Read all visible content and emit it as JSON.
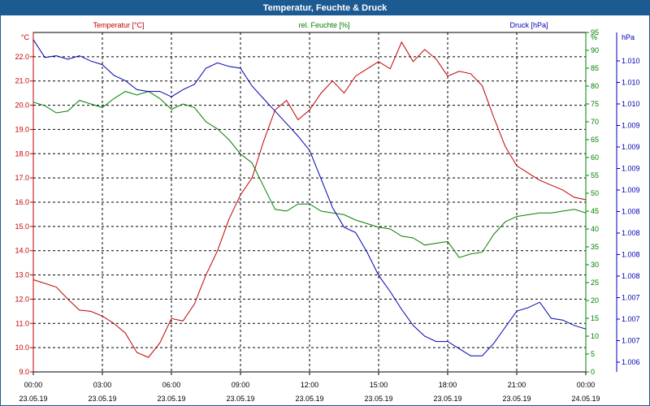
{
  "window": {
    "title": "Temperatur, Feuchte & Druck"
  },
  "chart_data": {
    "type": "line",
    "title": "Temperatur, Feuchte & Druck",
    "grid": true,
    "colors": {
      "temp": "#c00000",
      "humidity": "#008000",
      "pressure": "#0000b0",
      "frame": "#1c5a92"
    },
    "x": {
      "range": [
        "23.05.19 00:00",
        "24.05.19 00:00"
      ],
      "ticks": [
        {
          "time": "00:00",
          "date": "23.05.19"
        },
        {
          "time": "03:00",
          "date": "23.05.19"
        },
        {
          "time": "06:00",
          "date": "23.05.19"
        },
        {
          "time": "09:00",
          "date": "23.05.19"
        },
        {
          "time": "12:00",
          "date": "23.05.19"
        },
        {
          "time": "15:00",
          "date": "23.05.19"
        },
        {
          "time": "18:00",
          "date": "23.05.19"
        },
        {
          "time": "21:00",
          "date": "23.05.19"
        },
        {
          "time": "00:00",
          "date": "24.05.19"
        }
      ]
    },
    "axes": {
      "temp": {
        "unit": "°C",
        "legend": "Temperatur [°C]",
        "range": [
          9.0,
          23.0
        ],
        "ticks": [
          "9.0",
          "10.0",
          "11.0",
          "12.0",
          "13.0",
          "14.0",
          "15.0",
          "16.0",
          "17.0",
          "18.0",
          "19.0",
          "20.0",
          "21.0",
          "22.0"
        ]
      },
      "humidity": {
        "unit": "%",
        "legend": "rel. Feuchte [%]",
        "range": [
          0,
          95
        ],
        "ticks": [
          "0",
          "5",
          "10",
          "15",
          "20",
          "25",
          "30",
          "35",
          "40",
          "45",
          "50",
          "55",
          "60",
          "65",
          "70",
          "75",
          "80",
          "85",
          "90",
          "95"
        ]
      },
      "pressure": {
        "unit": "hPa",
        "legend": "Druck [hPa]",
        "ticks": [
          "1.006",
          "1.007",
          "1.007",
          "1.007",
          "1.008",
          "1.008",
          "1.008",
          "1.008",
          "1.009",
          "1.009",
          "1.009",
          "1.009",
          "1.010",
          "1.010",
          "1.010"
        ]
      }
    },
    "series": [
      {
        "name": "Temperatur [°C]",
        "axis": "temp",
        "points": [
          [
            "23.05.19 00:00",
            12.8
          ],
          [
            "23.05.19 00:30",
            12.65
          ],
          [
            "23.05.19 01:00",
            12.5
          ],
          [
            "23.05.19 01:30",
            12.0
          ],
          [
            "23.05.19 02:00",
            11.55
          ],
          [
            "23.05.19 02:30",
            11.5
          ],
          [
            "23.05.19 03:00",
            11.3
          ],
          [
            "23.05.19 03:30",
            11.0
          ],
          [
            "23.05.19 04:00",
            10.6
          ],
          [
            "23.05.19 04:30",
            9.8
          ],
          [
            "23.05.19 05:00",
            9.6
          ],
          [
            "23.05.19 05:30",
            10.2
          ],
          [
            "23.05.19 06:00",
            11.2
          ],
          [
            "23.05.19 06:30",
            11.1
          ],
          [
            "23.05.19 07:00",
            11.8
          ],
          [
            "23.05.19 07:30",
            13.0
          ],
          [
            "23.05.19 08:00",
            14.0
          ],
          [
            "23.05.19 08:30",
            15.3
          ],
          [
            "23.05.19 09:00",
            16.3
          ],
          [
            "23.05.19 09:30",
            17.0
          ],
          [
            "23.05.19 10:00",
            18.5
          ],
          [
            "23.05.19 10:30",
            19.8
          ],
          [
            "23.05.19 11:00",
            20.2
          ],
          [
            "23.05.19 11:30",
            19.4
          ],
          [
            "23.05.19 12:00",
            19.8
          ],
          [
            "23.05.19 12:30",
            20.5
          ],
          [
            "23.05.19 13:00",
            21.0
          ],
          [
            "23.05.19 13:30",
            20.5
          ],
          [
            "23.05.19 14:00",
            21.2
          ],
          [
            "23.05.19 14:30",
            21.5
          ],
          [
            "23.05.19 15:00",
            21.8
          ],
          [
            "23.05.19 15:30",
            21.5
          ],
          [
            "23.05.19 16:00",
            22.6
          ],
          [
            "23.05.19 16:30",
            21.8
          ],
          [
            "23.05.19 17:00",
            22.3
          ],
          [
            "23.05.19 17:30",
            21.9
          ],
          [
            "23.05.19 18:00",
            21.2
          ],
          [
            "23.05.19 18:30",
            21.4
          ],
          [
            "23.05.19 19:00",
            21.3
          ],
          [
            "23.05.19 19:30",
            20.8
          ],
          [
            "23.05.19 20:00",
            19.5
          ],
          [
            "23.05.19 20:30",
            18.3
          ],
          [
            "23.05.19 21:00",
            17.5
          ],
          [
            "23.05.19 21:30",
            17.2
          ],
          [
            "23.05.19 22:00",
            16.9
          ],
          [
            "23.05.19 22:30",
            16.7
          ],
          [
            "23.05.19 23:00",
            16.5
          ],
          [
            "23.05.19 23:30",
            16.2
          ],
          [
            "24.05.19 00:00",
            16.1
          ]
        ]
      },
      {
        "name": "rel. Feuchte [%]",
        "axis": "humidity",
        "points": [
          [
            "23.05.19 00:00",
            75.5
          ],
          [
            "23.05.19 00:30",
            74.5
          ],
          [
            "23.05.19 01:00",
            72.5
          ],
          [
            "23.05.19 01:30",
            73.0
          ],
          [
            "23.05.19 02:00",
            76.0
          ],
          [
            "23.05.19 02:30",
            75.0
          ],
          [
            "23.05.19 03:00",
            74.0
          ],
          [
            "23.05.19 03:30",
            76.5
          ],
          [
            "23.05.19 04:00",
            78.5
          ],
          [
            "23.05.19 04:30",
            77.5
          ],
          [
            "23.05.19 05:00",
            78.5
          ],
          [
            "23.05.19 05:30",
            76.5
          ],
          [
            "23.05.19 06:00",
            73.5
          ],
          [
            "23.05.19 06:30",
            75.0
          ],
          [
            "23.05.19 07:00",
            74.0
          ],
          [
            "23.05.19 07:30",
            70.0
          ],
          [
            "23.05.19 08:00",
            68.0
          ],
          [
            "23.05.19 08:30",
            65.0
          ],
          [
            "23.05.19 09:00",
            61.0
          ],
          [
            "23.05.19 09:30",
            58.5
          ],
          [
            "23.05.19 10:00",
            52.0
          ],
          [
            "23.05.19 10:30",
            45.5
          ],
          [
            "23.05.19 11:00",
            45.0
          ],
          [
            "23.05.19 11:30",
            47.0
          ],
          [
            "23.05.19 12:00",
            47.0
          ],
          [
            "23.05.19 12:30",
            45.0
          ],
          [
            "23.05.19 13:00",
            44.5
          ],
          [
            "23.05.19 13:30",
            44.0
          ],
          [
            "23.05.19 14:00",
            42.5
          ],
          [
            "23.05.19 14:30",
            41.5
          ],
          [
            "23.05.19 15:00",
            40.5
          ],
          [
            "23.05.19 15:30",
            40.0
          ],
          [
            "23.05.19 16:00",
            38.0
          ],
          [
            "23.05.19 16:30",
            37.5
          ],
          [
            "23.05.19 17:00",
            35.5
          ],
          [
            "23.05.19 17:30",
            36.0
          ],
          [
            "23.05.19 18:00",
            36.5
          ],
          [
            "23.05.19 18:30",
            32.0
          ],
          [
            "23.05.19 19:00",
            33.0
          ],
          [
            "23.05.19 19:30",
            33.5
          ],
          [
            "23.05.19 20:00",
            38.5
          ],
          [
            "23.05.19 20:30",
            42.0
          ],
          [
            "23.05.19 21:00",
            43.5
          ],
          [
            "23.05.19 21:30",
            44.0
          ],
          [
            "23.05.19 22:00",
            44.5
          ],
          [
            "23.05.19 22:30",
            44.5
          ],
          [
            "23.05.19 23:00",
            45.0
          ],
          [
            "23.05.19 23:30",
            45.5
          ],
          [
            "24.05.19 00:00",
            44.5
          ]
        ]
      },
      {
        "name": "Druck [hPa]",
        "axis": "pressure",
        "points": [
          [
            "23.05.19 00:00",
            93.0
          ],
          [
            "23.05.19 00:30",
            88.0
          ],
          [
            "23.05.19 01:00",
            88.5
          ],
          [
            "23.05.19 01:30",
            87.5
          ],
          [
            "23.05.19 02:00",
            88.5
          ],
          [
            "23.05.19 02:30",
            87.0
          ],
          [
            "23.05.19 03:00",
            86.0
          ],
          [
            "23.05.19 03:30",
            83.0
          ],
          [
            "23.05.19 04:00",
            81.5
          ],
          [
            "23.05.19 04:30",
            79.0
          ],
          [
            "23.05.19 05:00",
            78.5
          ],
          [
            "23.05.19 05:30",
            78.5
          ],
          [
            "23.05.19 06:00",
            77.0
          ],
          [
            "23.05.19 06:30",
            79.0
          ],
          [
            "23.05.19 07:00",
            80.5
          ],
          [
            "23.05.19 07:30",
            85.0
          ],
          [
            "23.05.19 08:00",
            86.5
          ],
          [
            "23.05.19 08:30",
            85.5
          ],
          [
            "23.05.19 09:00",
            85.0
          ],
          [
            "23.05.19 09:30",
            80.0
          ],
          [
            "23.05.19 10:00",
            76.5
          ],
          [
            "23.05.19 10:30",
            73.0
          ],
          [
            "23.05.19 11:00",
            69.5
          ],
          [
            "23.05.19 11:30",
            66.0
          ],
          [
            "23.05.19 12:00",
            62.0
          ],
          [
            "23.05.19 12:30",
            54.0
          ],
          [
            "23.05.19 13:00",
            46.0
          ],
          [
            "23.05.19 13:30",
            40.5
          ],
          [
            "23.05.19 14:00",
            39.0
          ],
          [
            "23.05.19 14:30",
            33.5
          ],
          [
            "23.05.19 15:00",
            27.0
          ],
          [
            "23.05.19 15:30",
            22.5
          ],
          [
            "23.05.19 16:00",
            17.5
          ],
          [
            "23.05.19 16:30",
            13.0
          ],
          [
            "23.05.19 17:00",
            10.0
          ],
          [
            "23.05.19 17:30",
            8.5
          ],
          [
            "23.05.19 18:00",
            8.5
          ],
          [
            "23.05.19 18:30",
            6.5
          ],
          [
            "23.05.19 19:00",
            4.5
          ],
          [
            "23.05.19 19:30",
            4.5
          ],
          [
            "23.05.19 20:00",
            8.0
          ],
          [
            "23.05.19 20:30",
            12.5
          ],
          [
            "23.05.19 21:00",
            17.0
          ],
          [
            "23.05.19 21:30",
            18.0
          ],
          [
            "23.05.19 22:00",
            19.5
          ],
          [
            "23.05.19 22:30",
            15.0
          ],
          [
            "23.05.19 23:00",
            14.5
          ],
          [
            "23.05.19 23:30",
            13.0
          ],
          [
            "24.05.19 00:00",
            12.0
          ]
        ]
      }
    ]
  }
}
